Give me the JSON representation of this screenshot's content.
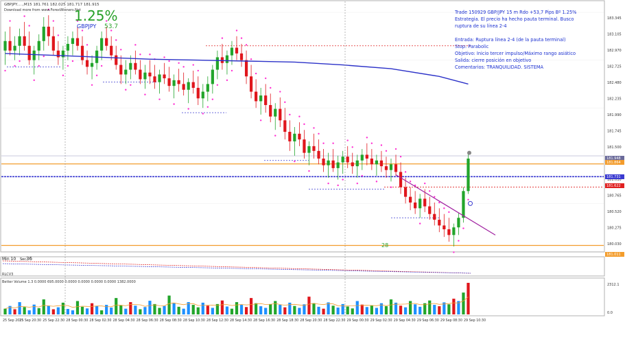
{
  "header": {
    "symbol_line": "GBPJPY.....,M15  181.761 182.025 181.717 181.915",
    "download_line": "Download more from www.ForexWinners.Net"
  },
  "badge": {
    "percent": "1.25%",
    "pair_label": "GBPJPY",
    "pips_label": "53.7"
  },
  "notes": [
    "Trade 150929 GBP/JPY 15 m Rdo +53,7 Pips Bº 1.25%",
    "Estrategia. El precio ha hecho pauta terminal. Busco",
    "ruptura de su línea 2-4",
    "",
    "Entrada: Ruptura línea 2-4 (de la pauta terminal)",
    "Stop: Parabolic",
    "Objetivo: Inicio tercer impulso/Máximo rango asiático",
    "Salida: cierre posición en objetivo",
    "Comentarios: TRANQUILIDAD. SISTEMA"
  ],
  "markers": {
    "label_28": "28",
    "min_label": "Min 10",
    "sec_label": "Sec",
    "sec_value": "36"
  },
  "colors": {
    "bull": "#22a52b",
    "bear": "#e0161c",
    "ma": "#2b31c8",
    "sar": "#ff2fd2",
    "note_text": "#1a2fd0",
    "trend_line": "#a020a0",
    "orange_line": "#f39c2b",
    "blue_dotted": "#3a3ad0",
    "red_dotted": "#e02020",
    "badge_green": "#27a028",
    "volume_avg": "#f39c2b"
  },
  "chart_data": {
    "type": "candlestick",
    "price_axis_ticks": [
      "183.345",
      "183.105",
      "182.970",
      "182.725",
      "182.480",
      "182.235",
      "181.990",
      "181.745",
      "181.500",
      "181.255",
      "181.010",
      "180.765",
      "180.520",
      "180.275",
      "180.030"
    ],
    "price_labels_right": [
      {
        "text": "181.948",
        "color": "#ffffff",
        "bg": "#6a6a9a"
      },
      {
        "text": "181.864",
        "color": "#ffffff",
        "bg": "#f39c2b"
      },
      {
        "text": "181.731",
        "color": "#ffffff",
        "bg": "#3a3ad0"
      },
      {
        "text": "181.622",
        "color": "#ffffff",
        "bg": "#e02020"
      },
      {
        "text": "181.011",
        "color": "#ffffff",
        "bg": "#f39c2b"
      }
    ],
    "time_labels": [
      "25 Sep 2015",
      "25 Sep 20:30",
      "25 Sep 22:30",
      "28 Sep 00:30",
      "28 Sep 02:30",
      "28 Sep 04:30",
      "28 Sep 06:30",
      "28 Sep 08:30",
      "28 Sep 10:30",
      "28 Sep 12:30",
      "28 Sep 14:30",
      "28 Sep 16:30",
      "28 Sep 18:30",
      "28 Sep 20:30",
      "28 Sep 22:30",
      "29 Sep 00:30",
      "29 Sep 02:30",
      "29 Sep 04:30",
      "29 Sep 06:30",
      "29 Sep 08:30",
      "29 Sep 10:30"
    ],
    "ohlc": [
      [
        183.05,
        183.25,
        182.9,
        183.15
      ],
      [
        183.15,
        183.3,
        183.0,
        183.05
      ],
      [
        183.05,
        183.2,
        182.95,
        183.1
      ],
      [
        183.1,
        183.28,
        183.0,
        183.2
      ],
      [
        183.2,
        183.35,
        183.05,
        183.1
      ],
      [
        183.1,
        183.25,
        182.9,
        182.95
      ],
      [
        182.95,
        183.1,
        182.8,
        183.05
      ],
      [
        183.05,
        183.22,
        182.95,
        183.15
      ],
      [
        183.15,
        183.4,
        183.05,
        183.3
      ],
      [
        183.3,
        183.42,
        183.1,
        183.2
      ],
      [
        183.2,
        183.3,
        183.0,
        183.05
      ],
      [
        183.05,
        183.15,
        182.9,
        182.98
      ],
      [
        182.98,
        183.1,
        182.85,
        183.05
      ],
      [
        183.05,
        183.2,
        182.95,
        183.12
      ],
      [
        183.12,
        183.25,
        183.0,
        183.18
      ],
      [
        183.18,
        183.3,
        183.05,
        183.1
      ],
      [
        183.1,
        183.2,
        182.9,
        182.95
      ],
      [
        182.95,
        183.05,
        182.8,
        182.88
      ],
      [
        182.88,
        183.0,
        182.75,
        182.92
      ],
      [
        182.92,
        183.1,
        182.85,
        183.05
      ],
      [
        183.05,
        183.25,
        182.95,
        183.18
      ],
      [
        183.18,
        183.3,
        183.05,
        183.1
      ],
      [
        183.1,
        183.2,
        182.95,
        183.0
      ],
      [
        183.0,
        183.1,
        182.85,
        182.9
      ],
      [
        182.9,
        183.0,
        182.7,
        182.8
      ],
      [
        182.8,
        182.95,
        182.7,
        182.85
      ],
      [
        182.85,
        183.0,
        182.75,
        182.92
      ],
      [
        182.92,
        183.05,
        182.8,
        182.85
      ],
      [
        182.85,
        182.95,
        182.7,
        182.75
      ],
      [
        182.75,
        182.9,
        182.65,
        182.82
      ],
      [
        182.82,
        182.95,
        182.7,
        182.78
      ],
      [
        182.78,
        182.9,
        182.65,
        182.72
      ],
      [
        182.72,
        182.85,
        182.6,
        182.8
      ],
      [
        182.8,
        182.92,
        182.7,
        182.76
      ],
      [
        182.76,
        182.88,
        182.62,
        182.68
      ],
      [
        182.68,
        182.8,
        182.55,
        182.74
      ],
      [
        182.74,
        182.86,
        182.62,
        182.7
      ],
      [
        182.7,
        182.82,
        182.58,
        182.64
      ],
      [
        182.64,
        182.76,
        182.5,
        182.72
      ],
      [
        182.72,
        182.84,
        182.6,
        182.66
      ],
      [
        182.66,
        182.78,
        182.48,
        182.55
      ],
      [
        182.55,
        182.7,
        182.45,
        182.62
      ],
      [
        182.62,
        182.78,
        182.52,
        182.7
      ],
      [
        182.7,
        182.9,
        182.6,
        182.85
      ],
      [
        182.85,
        183.05,
        182.75,
        182.98
      ],
      [
        182.98,
        183.12,
        182.85,
        182.92
      ],
      [
        182.92,
        183.05,
        182.8,
        183.0
      ],
      [
        183.0,
        183.15,
        182.9,
        183.08
      ],
      [
        183.08,
        183.2,
        182.95,
        183.02
      ],
      [
        183.02,
        183.12,
        182.88,
        182.95
      ],
      [
        182.95,
        183.05,
        182.7,
        182.78
      ],
      [
        182.78,
        182.9,
        182.55,
        182.62
      ],
      [
        182.62,
        182.75,
        182.45,
        182.52
      ],
      [
        182.52,
        182.66,
        182.38,
        182.58
      ],
      [
        182.58,
        182.7,
        182.4,
        182.48
      ],
      [
        182.48,
        182.6,
        182.3,
        182.36
      ],
      [
        182.36,
        182.5,
        182.22,
        182.44
      ],
      [
        182.44,
        182.56,
        182.25,
        182.32
      ],
      [
        182.32,
        182.45,
        182.12,
        182.2
      ],
      [
        182.2,
        182.32,
        182.0,
        182.1
      ],
      [
        182.1,
        182.25,
        181.95,
        182.18
      ],
      [
        182.18,
        182.3,
        182.05,
        182.12
      ],
      [
        182.12,
        182.22,
        181.92,
        181.98
      ],
      [
        181.98,
        182.1,
        181.85,
        182.05
      ],
      [
        182.05,
        182.18,
        181.92,
        182.0
      ],
      [
        182.0,
        182.12,
        181.86,
        181.92
      ],
      [
        181.92,
        182.02,
        181.78,
        181.85
      ],
      [
        181.85,
        181.98,
        181.72,
        181.9
      ],
      [
        181.9,
        182.02,
        181.78,
        181.82
      ],
      [
        181.82,
        181.95,
        181.7,
        181.88
      ],
      [
        181.88,
        182.0,
        181.76,
        181.94
      ],
      [
        181.94,
        182.05,
        181.82,
        181.88
      ],
      [
        181.88,
        181.98,
        181.76,
        181.84
      ],
      [
        181.84,
        181.96,
        181.72,
        181.9
      ],
      [
        181.9,
        182.02,
        181.8,
        181.96
      ],
      [
        181.96,
        182.08,
        181.85,
        181.92
      ],
      [
        181.92,
        182.02,
        181.8,
        181.86
      ],
      [
        181.86,
        181.96,
        181.74,
        181.9
      ],
      [
        181.9,
        182.0,
        181.78,
        181.84
      ],
      [
        181.84,
        181.94,
        181.72,
        181.8
      ],
      [
        181.8,
        181.92,
        181.68,
        181.86
      ],
      [
        181.86,
        181.96,
        181.74,
        181.78
      ],
      [
        181.78,
        181.88,
        181.55,
        181.62
      ],
      [
        181.62,
        181.72,
        181.45,
        181.52
      ],
      [
        181.52,
        181.62,
        181.38,
        181.46
      ],
      [
        181.46,
        181.58,
        181.34,
        181.4
      ],
      [
        181.4,
        181.55,
        181.3,
        181.5
      ],
      [
        181.5,
        181.6,
        181.36,
        181.42
      ],
      [
        181.42,
        181.52,
        181.28,
        181.34
      ],
      [
        181.34,
        181.46,
        181.22,
        181.28
      ],
      [
        181.28,
        181.4,
        181.15,
        181.22
      ],
      [
        181.22,
        181.34,
        181.1,
        181.18
      ],
      [
        181.18,
        181.3,
        181.05,
        181.12
      ],
      [
        181.12,
        181.24,
        181.0,
        181.2
      ],
      [
        181.2,
        181.35,
        181.12,
        181.3
      ],
      [
        181.3,
        181.62,
        181.25,
        181.58
      ],
      [
        181.58,
        181.98,
        181.55,
        181.92
      ]
    ],
    "ma_points": [
      [
        0,
        183.02
      ],
      [
        10,
        183.0
      ],
      [
        20,
        182.98
      ],
      [
        30,
        182.96
      ],
      [
        40,
        182.95
      ],
      [
        50,
        182.94
      ],
      [
        60,
        182.93
      ],
      [
        70,
        182.9
      ],
      [
        80,
        182.86
      ],
      [
        90,
        182.78
      ],
      [
        96,
        182.7
      ]
    ],
    "levels": {
      "orange_top": 181.864,
      "orange_bottom": 181.011,
      "blue_dotted_mid": 181.731,
      "red_dotted_mid": 181.622,
      "red_dotted_top": 183.1,
      "blue_dotted_1": 182.88,
      "blue_dotted_2": 182.72,
      "blue_dotted_3": 182.4,
      "blue_dotted_4": 181.9,
      "blue_dotted_5": 181.6,
      "blue_dotted_6": 181.3
    },
    "trend_line": {
      "from": [
        81,
        181.75
      ],
      "to": [
        97,
        181.22
      ]
    },
    "volumes": [
      420,
      620,
      380,
      900,
      540,
      300,
      720,
      460,
      1100,
      640,
      380,
      520,
      860,
      400,
      300,
      980,
      560,
      440,
      820,
      620,
      300,
      700,
      500,
      1200,
      680,
      420,
      900,
      640,
      380,
      540,
      1000,
      760,
      480,
      620,
      1380,
      820,
      560,
      420,
      900,
      700,
      520,
      860,
      640,
      480,
      760,
      1020,
      580,
      420,
      900,
      700,
      540,
      1200,
      820,
      600,
      480,
      760,
      980,
      700,
      520,
      860,
      620,
      480,
      740,
      1300,
      820,
      560,
      420,
      880,
      640,
      500,
      760,
      580,
      440,
      980,
      720,
      540,
      660,
      480,
      820,
      600,
      1100,
      860,
      640,
      520,
      980,
      740,
      560,
      820,
      1020,
      700,
      600,
      880,
      740,
      1150,
      980,
      1600,
      2312
    ],
    "volume_axis_ticks": [
      "2312.1",
      "0.0"
    ],
    "volume_title": "Better Volume 1.3  0.0000 695.0000 0.0000 0.0000 0.0000 0.0000 1382.0000",
    "lower_indicator_label": "RLCV3",
    "price_min": 180.95,
    "price_max": 183.45
  }
}
